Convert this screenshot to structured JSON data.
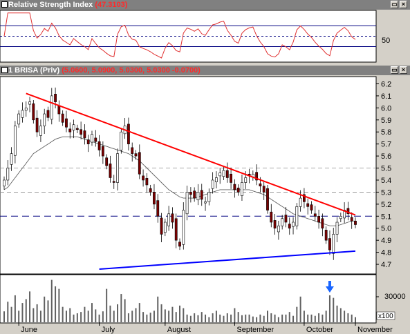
{
  "rsi_pane": {
    "title": "Relative Strength Index",
    "value": "(47.3103)",
    "level_label": "50",
    "btn_restore": "▭",
    "btn_close": "×"
  },
  "price_pane": {
    "title": "1 BRISA (Priv)",
    "ohlc": "(5.0600, 5.0900, 5.0300, 5.0300 -0.0700)",
    "btn_restore": "▭",
    "btn_close": "×"
  },
  "volume_pane": {
    "tick_label": "30000",
    "scale_label": "x100"
  },
  "colors": {
    "rsi_line": "#e03030",
    "trendline_down": "#ff0000",
    "trendline_up": "#0000ff",
    "candle_up": "#ffffff",
    "candle_down": "#7a0000",
    "volume_bar": "#606060",
    "arrow": "#1a66ff"
  },
  "chart_data": {
    "type": "candlestick",
    "months": [
      "June",
      "July",
      "August",
      "September",
      "October",
      "November"
    ],
    "price_axis": {
      "ylim": [
        4.62,
        6.26
      ],
      "ticks": [
        "6.2",
        "6.1",
        "6.0",
        "5.9",
        "5.8",
        "5.7",
        "5.6",
        "5.5",
        "5.4",
        "5.3",
        "5.2",
        "5.1",
        "5.0",
        "4.9",
        "4.8",
        "4.7"
      ]
    },
    "rsi_axis": {
      "ylim": [
        0,
        100
      ],
      "level": 50
    },
    "closes": [
      5.4,
      5.5,
      5.62,
      5.85,
      5.95,
      5.98,
      6.0,
      6.05,
      5.9,
      5.8,
      5.85,
      5.95,
      5.92,
      6.1,
      6.05,
      5.95,
      5.88,
      5.84,
      5.8,
      5.86,
      5.82,
      5.78,
      5.75,
      5.7,
      5.78,
      5.72,
      5.65,
      5.6,
      5.52,
      5.42,
      5.38,
      5.62,
      5.8,
      5.85,
      5.7,
      5.62,
      5.6,
      5.45,
      5.4,
      5.36,
      5.3,
      5.2,
      5.1,
      4.95,
      5.05,
      5.12,
      5.05,
      4.9,
      4.85,
      5.15,
      5.3,
      5.28,
      5.25,
      5.3,
      5.24,
      5.22,
      5.3,
      5.4,
      5.42,
      5.46,
      5.48,
      5.42,
      5.38,
      5.32,
      5.3,
      5.38,
      5.42,
      5.44,
      5.45,
      5.4,
      5.35,
      5.3,
      5.15,
      5.05,
      5.0,
      5.02,
      5.08,
      5.05,
      5.0,
      5.05,
      5.18,
      5.25,
      5.22,
      5.18,
      5.15,
      5.1,
      5.05,
      5.0,
      4.9,
      4.82,
      4.95,
      5.05,
      5.1,
      5.15,
      5.12,
      5.06,
      5.03
    ],
    "ma_long": [
      5.32,
      5.34,
      5.38,
      5.42,
      5.46,
      5.5,
      5.54,
      5.58,
      5.62,
      5.64,
      5.66,
      5.68,
      5.7,
      5.72,
      5.74,
      5.75,
      5.76,
      5.76,
      5.76,
      5.76,
      5.76,
      5.75,
      5.74,
      5.73,
      5.72,
      5.71,
      5.7,
      5.69,
      5.68,
      5.67,
      5.66,
      5.65,
      5.64,
      5.63,
      5.62,
      5.6,
      5.58,
      5.56,
      5.53,
      5.5,
      5.47,
      5.44,
      5.41,
      5.38,
      5.35,
      5.32,
      5.3,
      5.28,
      5.26,
      5.25,
      5.25,
      5.25,
      5.25,
      5.26,
      5.27,
      5.28,
      5.29,
      5.3,
      5.31,
      5.32,
      5.32,
      5.32,
      5.32,
      5.32,
      5.32,
      5.32,
      5.32,
      5.32,
      5.31,
      5.3,
      5.29,
      5.28,
      5.26,
      5.24,
      5.22,
      5.2,
      5.18,
      5.16,
      5.14,
      5.12,
      5.11,
      5.1,
      5.09,
      5.08,
      5.07,
      5.06,
      5.05,
      5.04,
      5.03,
      5.02,
      5.02,
      5.02,
      5.03,
      5.04,
      5.05,
      5.06,
      5.06
    ],
    "volumes": [
      85,
      160,
      120,
      210,
      90,
      150,
      180,
      240,
      110,
      140,
      90,
      200,
      170,
      330,
      280,
      260,
      120,
      90,
      110,
      60,
      70,
      80,
      120,
      90,
      150,
      100,
      60,
      85,
      260,
      130,
      90,
      140,
      220,
      180,
      70,
      90,
      110,
      150,
      80,
      60,
      75,
      90,
      200,
      140,
      100,
      90,
      120,
      80,
      130,
      110,
      60,
      50,
      70,
      55,
      80,
      60,
      40,
      70,
      90,
      60,
      50,
      70,
      60,
      110,
      80,
      55,
      60,
      60,
      45,
      40,
      60,
      50,
      90,
      70,
      60,
      40,
      60,
      60,
      80,
      50,
      120,
      200,
      90,
      60,
      60,
      50,
      70,
      60,
      90,
      210,
      190,
      130,
      110,
      90,
      70,
      60,
      40
    ],
    "trendlines": [
      {
        "name": "downtrend",
        "p1": [
          6,
          6.12
        ],
        "p2": [
          96,
          5.11
        ]
      },
      {
        "name": "support",
        "p1": [
          26,
          4.66
        ],
        "p2": [
          96,
          4.81
        ]
      }
    ],
    "horizontal_levels": [
      5.1,
      5.3,
      5.5
    ]
  }
}
